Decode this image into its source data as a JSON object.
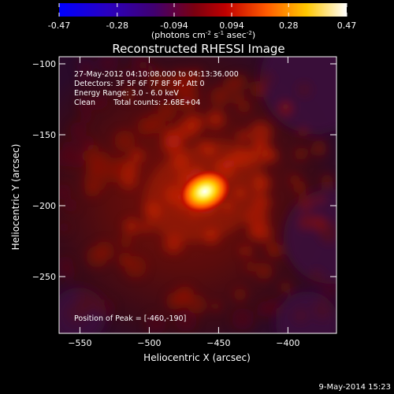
{
  "chart_data": [
    {
      "type": "colorbar",
      "range": [
        -0.47,
        0.47
      ],
      "ticks": [
        "-0.47",
        "-0.28",
        "-0.094",
        "0.094",
        "0.28",
        "0.47"
      ],
      "tick_values": [
        -0.47,
        -0.28,
        -0.094,
        0.094,
        0.28,
        0.47
      ],
      "label_main": "(photons cm",
      "label_exp1": "-2",
      "label_mid": " s",
      "label_exp2": "-1",
      "label_mid2": " asec",
      "label_exp3": "-2",
      "label_end": ")",
      "colormap": [
        "#0000ff",
        "#2a00c0",
        "#400070",
        "#7a0010",
        "#c00000",
        "#ff5a00",
        "#ffc800",
        "#ffffff"
      ]
    },
    {
      "type": "heatmap",
      "title": "Reconstructed RHESSI Image",
      "xlabel": "Heliocentric X (arcsec)",
      "ylabel": "Heliocentric Y (arcsec)",
      "xlim": [
        -565,
        -365
      ],
      "ylim": [
        -290,
        -95
      ],
      "x_ticks": [
        -550,
        -500,
        -450,
        -400
      ],
      "y_ticks": [
        -100,
        -150,
        -200,
        -250
      ],
      "peak": [
        -460,
        -190
      ],
      "grid": false,
      "annotations": {
        "time_range": "27-May-2012 04:10:08.000 to 04:13:36.000",
        "detectors": "Detectors: 3F 5F 6F 7F 8F 9F, Att 0",
        "energy": "Energy Range: 3.0 - 6.0 keV",
        "method": "Clean",
        "counts": "Total counts: 2.68E+04",
        "peak_text": "Position of Peak = [-460,-190]"
      }
    }
  ],
  "footer": {
    "date": "9-May-2014 15:23"
  }
}
